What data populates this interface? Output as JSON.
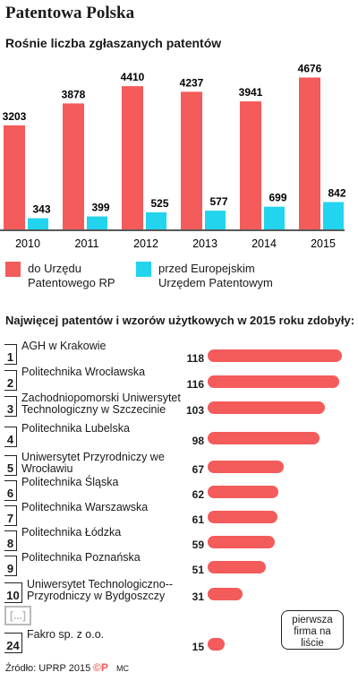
{
  "title": "Patentowa Polska",
  "subtitle": "Rośnie liczba zgłaszanych patentów",
  "ranking_title": "Najwięcej patentów i wzorów użytkowych w 2015 roku zdobyły:",
  "source": "Źródło: UPRP 2015",
  "logo": "©P",
  "initials": "MC",
  "ellipsis": "[...]",
  "callout": "pierwsza firma na liście",
  "colors": {
    "red": "#f45b5b",
    "cyan": "#22d4ee"
  },
  "chart_data": [
    {
      "type": "bar",
      "categories": [
        "2010",
        "2011",
        "2012",
        "2013",
        "2014",
        "2015"
      ],
      "series": [
        {
          "name": "do Urzędu Patentowego RP",
          "color": "#f45b5b",
          "values": [
            3203,
            3878,
            4410,
            4237,
            3941,
            4676
          ]
        },
        {
          "name": "przed Europejskim Urzędem Patentowym",
          "color": "#22d4ee",
          "values": [
            343,
            399,
            525,
            577,
            699,
            842
          ]
        }
      ],
      "ylim": [
        0,
        4800
      ],
      "legend": "bottom"
    },
    {
      "type": "bar",
      "orientation": "horizontal",
      "categories": [
        "AGH w Krakowie",
        "Politechnika Wrocławska",
        "Zachodniopomorski Uniwersytet Technologiczny w Szczecinie",
        "Politechnika Lubelska",
        "Uniwersytet Przyrodniczy we Wrocławiu",
        "Politechnika Śląska",
        "Politechnika Warszawska",
        "Politechnika Łódzka",
        "Politechnika Poznańska",
        "Uniwersytet Technologiczno--Przyrodniczy w Bydgoszczy",
        "Fakro sp. z o.o."
      ],
      "ranks": [
        "1",
        "2",
        "3",
        "4",
        "5",
        "6",
        "7",
        "8",
        "9",
        "10",
        "24"
      ],
      "values": [
        118,
        116,
        103,
        98,
        67,
        62,
        61,
        59,
        51,
        31,
        15
      ],
      "xlim": [
        0,
        118
      ]
    }
  ]
}
